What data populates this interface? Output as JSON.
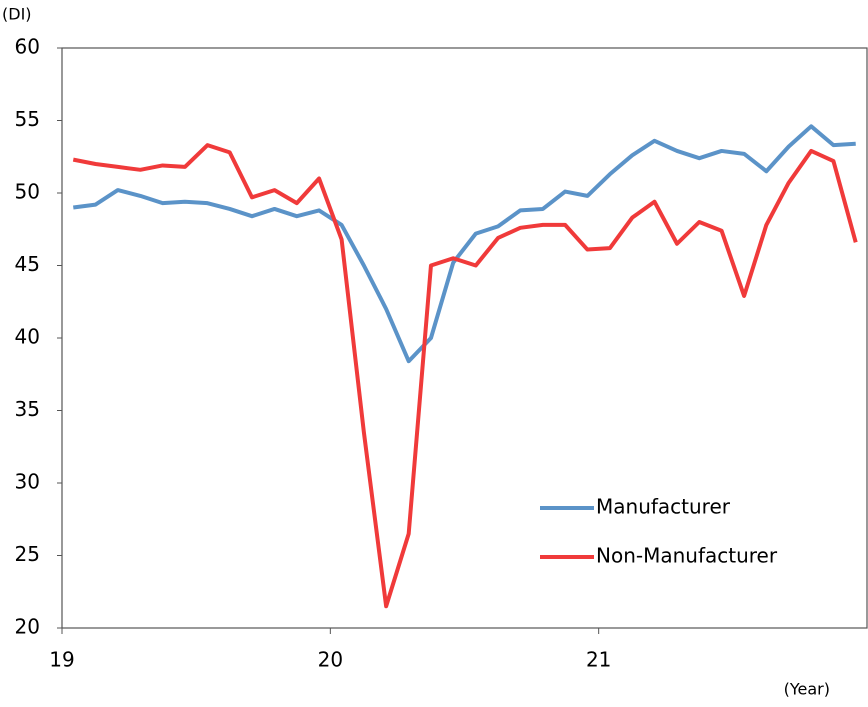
{
  "chart_data": {
    "type": "line",
    "y_unit_label": "(DI)",
    "x_unit_label": "(Year)",
    "x": [
      19.042,
      19.125,
      19.208,
      19.292,
      19.375,
      19.458,
      19.542,
      19.625,
      19.708,
      19.792,
      19.875,
      19.958,
      20.042,
      20.125,
      20.208,
      20.292,
      20.375,
      20.458,
      20.542,
      20.625,
      20.708,
      20.792,
      20.875,
      20.958,
      21.042,
      21.125,
      21.208,
      21.292,
      21.375,
      21.458,
      21.542,
      21.625,
      21.708,
      21.792,
      21.875,
      21.958
    ],
    "series": [
      {
        "name": "Manufacturer",
        "color": "#5b93c8",
        "values": [
          49.0,
          49.2,
          50.2,
          49.8,
          49.3,
          49.4,
          49.3,
          48.9,
          48.4,
          48.9,
          48.4,
          48.8,
          47.8,
          45.0,
          42.0,
          38.4,
          40.0,
          45.2,
          47.2,
          47.7,
          48.8,
          48.9,
          50.1,
          49.8,
          51.3,
          52.6,
          53.6,
          52.9,
          52.4,
          52.9,
          52.7,
          51.5,
          53.2,
          54.6,
          53.3,
          53.4
        ]
      },
      {
        "name": "Non-Manufacturer",
        "color": "#f03a3a",
        "values": [
          52.3,
          52.0,
          51.8,
          51.6,
          51.9,
          51.8,
          53.3,
          52.8,
          49.7,
          50.2,
          49.3,
          51.0,
          46.8,
          33.5,
          21.5,
          26.5,
          45.0,
          45.5,
          45.0,
          46.9,
          47.6,
          47.8,
          47.8,
          46.1,
          46.2,
          48.3,
          49.4,
          46.5,
          48.0,
          47.4,
          42.9,
          47.8,
          50.7,
          52.9,
          52.2,
          46.6
        ]
      }
    ],
    "xlim": [
      19,
      22
    ],
    "xticks": [
      19,
      20,
      21
    ],
    "ylim": [
      20,
      60
    ],
    "yticks": [
      20,
      25,
      30,
      35,
      40,
      45,
      50,
      55,
      60
    ],
    "grid": false,
    "legend": "lower right"
  }
}
